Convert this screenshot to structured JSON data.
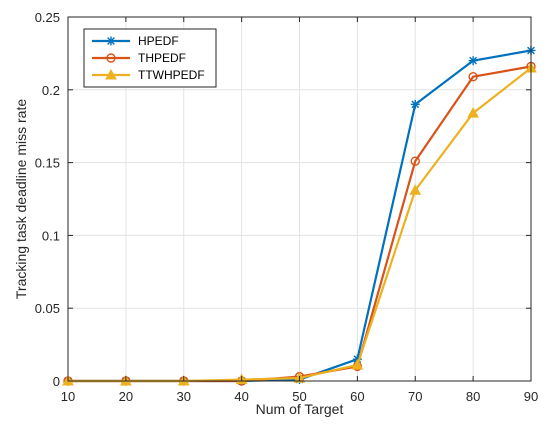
{
  "chart_data": {
    "type": "line",
    "xlabel": "Num of Target",
    "ylabel": "Tracking task deadline miss rate",
    "x": [
      10,
      20,
      30,
      40,
      50,
      60,
      70,
      80,
      90
    ],
    "xlim": [
      10,
      90
    ],
    "ylim": [
      0,
      0.25
    ],
    "xticks": [
      "10",
      "20",
      "30",
      "40",
      "50",
      "60",
      "70",
      "80",
      "90"
    ],
    "yticks": [
      "0",
      "0.05",
      "0.1",
      "0.15",
      "0.2",
      "0.25"
    ],
    "grid": true,
    "legend_position": "top-left",
    "series": [
      {
        "name": "HPEDF",
        "color": "#0072BD",
        "marker": "asterisk",
        "values": [
          0,
          0,
          0,
          0,
          0.001,
          0.015,
          0.19,
          0.22,
          0.227
        ]
      },
      {
        "name": "THPEDF",
        "color": "#D95319",
        "marker": "circle",
        "values": [
          0,
          0,
          0,
          0,
          0.003,
          0.01,
          0.151,
          0.209,
          0.216
        ]
      },
      {
        "name": "TTWHPEDF",
        "color": "#EDB120",
        "marker": "triangle",
        "values": [
          0,
          0,
          0,
          0.001,
          0.002,
          0.011,
          0.131,
          0.184,
          0.215
        ]
      }
    ]
  }
}
